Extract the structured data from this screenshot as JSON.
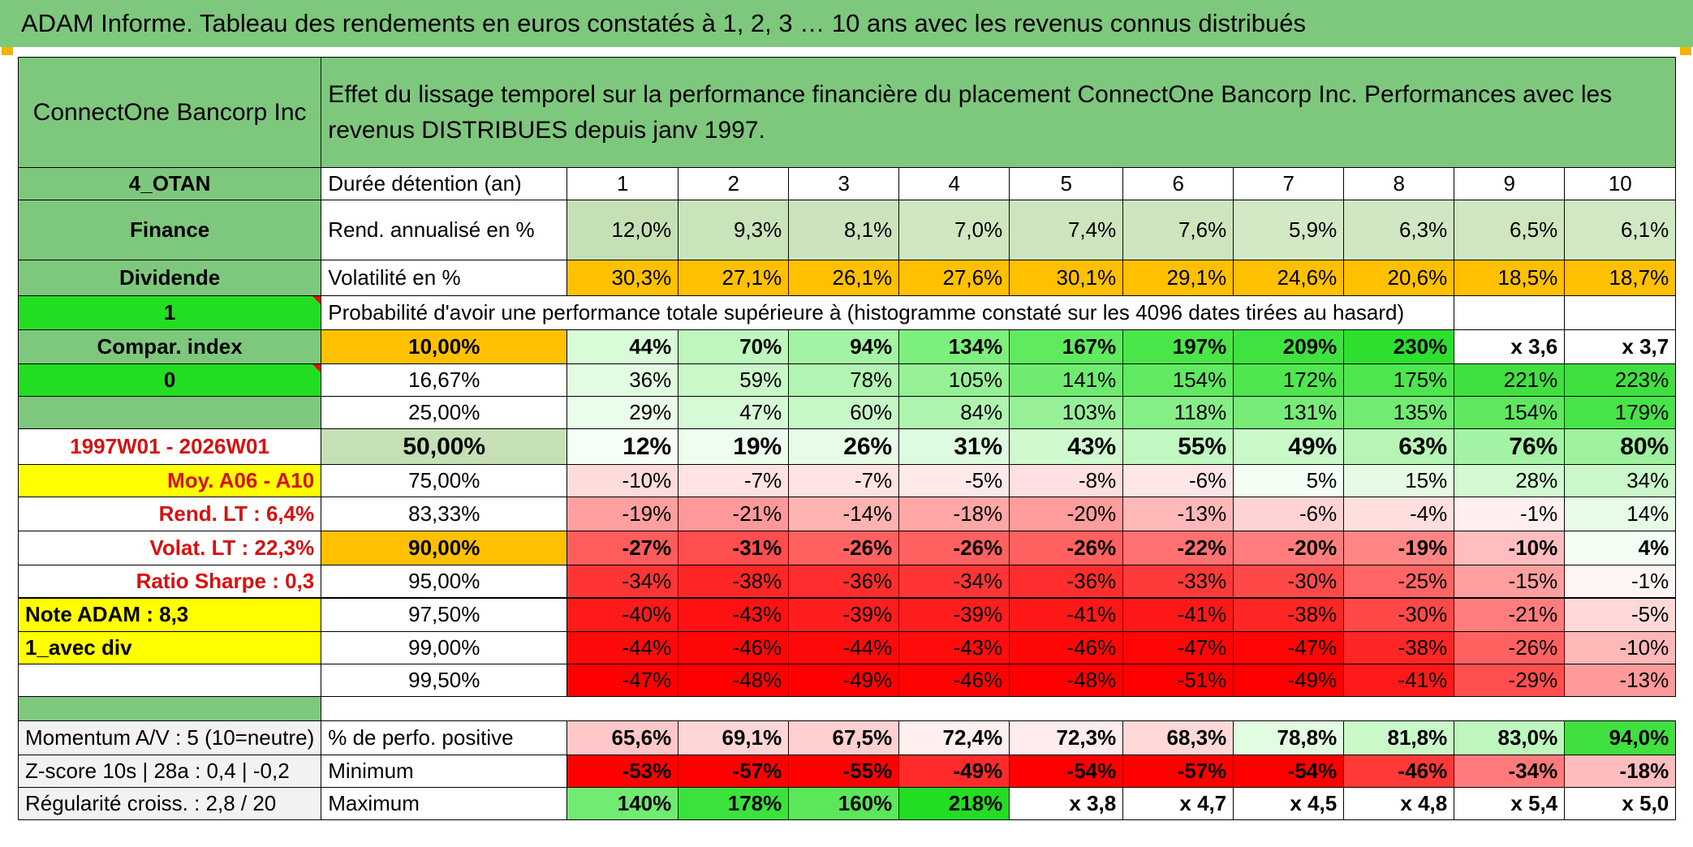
{
  "title": "ADAM Informe. Tableau des rendements en euros constatés à 1, 2, 3 … 10 ans avec les revenus connus distribués",
  "header": {
    "company": "ConnectOne Bancorp Inc",
    "description": "Effet du lissage temporel sur la performance financière du placement ConnectOne Bancorp Inc. Performances avec les revenus DISTRIBUES depuis janv 1997."
  },
  "left_labels": {
    "code": "4_OTAN",
    "sector": "Finance",
    "type": "Dividende",
    "flag": "1",
    "compar": "Compar. index",
    "compar_value": "0",
    "period": "1997W01 - 2026W01",
    "moy": "Moy. A06 - A10",
    "rend_lt": "Rend. LT :   6,4%",
    "volat_lt": "Volat. LT :   22,3%",
    "sharpe": "Ratio Sharpe :   0,3",
    "note": "Note ADAM : 8,3",
    "avec_div": "1_avec div",
    "momentum": "Momentum A/V : 5 (10=neutre)",
    "zscore": "Z-score 10s | 28a : 0,4 | -0,2",
    "regularite": "Régularité croiss. : 2,8 / 20"
  },
  "rows": {
    "duration": {
      "label": "Durée détention (an)",
      "values": [
        "1",
        "2",
        "3",
        "4",
        "5",
        "6",
        "7",
        "8",
        "9",
        "10"
      ]
    },
    "rend": {
      "label": "Rend. annualisé en %",
      "values": [
        "12,0%",
        "9,3%",
        "8,1%",
        "7,0%",
        "7,4%",
        "7,6%",
        "5,9%",
        "6,3%",
        "6,5%",
        "6,1%"
      ]
    },
    "vol": {
      "label": "Volatilité en %",
      "values": [
        "30,3%",
        "27,1%",
        "26,1%",
        "27,6%",
        "30,1%",
        "29,1%",
        "24,6%",
        "20,6%",
        "18,5%",
        "18,7%"
      ]
    },
    "prob_header": "Probabilité d'avoir une performance totale supérieure à (histogramme constaté sur les 4096 dates tirées au hasard)",
    "percentiles": [
      {
        "label": "10,00%",
        "values": [
          "44%",
          "70%",
          "94%",
          "134%",
          "167%",
          "197%",
          "209%",
          "230%",
          "x 3,6",
          "x 3,7"
        ]
      },
      {
        "label": "16,67%",
        "values": [
          "36%",
          "59%",
          "78%",
          "105%",
          "141%",
          "154%",
          "172%",
          "175%",
          "221%",
          "223%"
        ]
      },
      {
        "label": "25,00%",
        "values": [
          "29%",
          "47%",
          "60%",
          "84%",
          "103%",
          "118%",
          "131%",
          "135%",
          "154%",
          "179%"
        ]
      },
      {
        "label": "50,00%",
        "values": [
          "12%",
          "19%",
          "26%",
          "31%",
          "43%",
          "55%",
          "49%",
          "63%",
          "76%",
          "80%"
        ]
      },
      {
        "label": "75,00%",
        "values": [
          "-10%",
          "-7%",
          "-7%",
          "-5%",
          "-8%",
          "-6%",
          "5%",
          "15%",
          "28%",
          "34%"
        ]
      },
      {
        "label": "83,33%",
        "values": [
          "-19%",
          "-21%",
          "-14%",
          "-18%",
          "-20%",
          "-13%",
          "-6%",
          "-4%",
          "-1%",
          "14%"
        ]
      },
      {
        "label": "90,00%",
        "values": [
          "-27%",
          "-31%",
          "-26%",
          "-26%",
          "-26%",
          "-22%",
          "-20%",
          "-19%",
          "-10%",
          "4%"
        ]
      },
      {
        "label": "95,00%",
        "values": [
          "-34%",
          "-38%",
          "-36%",
          "-34%",
          "-36%",
          "-33%",
          "-30%",
          "-25%",
          "-15%",
          "-1%"
        ]
      },
      {
        "label": "97,50%",
        "values": [
          "-40%",
          "-43%",
          "-39%",
          "-39%",
          "-41%",
          "-41%",
          "-38%",
          "-30%",
          "-21%",
          "-5%"
        ]
      },
      {
        "label": "99,00%",
        "values": [
          "-44%",
          "-46%",
          "-44%",
          "-43%",
          "-46%",
          "-47%",
          "-47%",
          "-38%",
          "-26%",
          "-10%"
        ]
      },
      {
        "label": "99,50%",
        "values": [
          "-47%",
          "-48%",
          "-49%",
          "-46%",
          "-48%",
          "-51%",
          "-49%",
          "-41%",
          "-29%",
          "-13%"
        ]
      }
    ],
    "positive": {
      "label": "% de perfo. positive",
      "values": [
        "65,6%",
        "69,1%",
        "67,5%",
        "72,4%",
        "72,3%",
        "68,3%",
        "78,8%",
        "81,8%",
        "83,0%",
        "94,0%"
      ]
    },
    "minimum": {
      "label": "Minimum",
      "values": [
        "-53%",
        "-57%",
        "-55%",
        "-49%",
        "-54%",
        "-57%",
        "-54%",
        "-46%",
        "-34%",
        "-18%"
      ]
    },
    "maximum": {
      "label": "Maximum",
      "values": [
        "140%",
        "178%",
        "160%",
        "218%",
        "x 3,8",
        "x 4,7",
        "x 4,5",
        "x 4,8",
        "x 5,4",
        "x 5,0"
      ]
    }
  },
  "colors": {
    "header_green": "#7ec87e",
    "bright_green": "#22dd22",
    "orange": "#ffc000",
    "yellow": "#ffff00",
    "rend_green": "#c4e0b4",
    "light_gray": "#f2f2f2",
    "red_text": "#d81010"
  },
  "cell_colors": {
    "rend": [
      "#c4e0b4",
      "#c9e3ba",
      "#cbe4bd",
      "#cfe7c1",
      "#cde5bf",
      "#cce5be",
      "#d3e9c6",
      "#d0e7c3",
      "#cfe6c1",
      "#d1e8c4"
    ],
    "vol": [
      "#ffc000",
      "#ffc000",
      "#ffc000",
      "#ffc000",
      "#ffc000",
      "#ffc000",
      "#ffc000",
      "#ffc000",
      "#ffc000",
      "#ffc000"
    ],
    "percentiles": [
      [
        "#d8fbd8",
        "#bdf7bd",
        "#a4f3a4",
        "#7cef7c",
        "#5fea5f",
        "#49e549",
        "#3fe33f",
        "#2ee02e",
        "#ffffff",
        "#ffffff"
      ],
      [
        "#e1fce1",
        "#c9f8c9",
        "#b2f5b2",
        "#96f096",
        "#6feb6f",
        "#61e961",
        "#50e650",
        "#4ee64e",
        "#3fe03f",
        "#3fe03f"
      ],
      [
        "#eafdea",
        "#d6fad6",
        "#c6f7c6",
        "#aef3ae",
        "#97f097",
        "#86ee86",
        "#77ec77",
        "#72eb72",
        "#5fe85f",
        "#46e446"
      ],
      [
        "#f6fff6",
        "#eefeee",
        "#e6fce6",
        "#dffbdf",
        "#d0f9d0",
        "#c1f7c1",
        "#c9f8c9",
        "#b6f5b6",
        "#a4f3a4",
        "#9ef29e"
      ],
      [
        "#ffdcdc",
        "#ffe3e3",
        "#ffe3e3",
        "#ffe8e8",
        "#ffe0e0",
        "#ffe6e6",
        "#f3fff3",
        "#e3fce3",
        "#d2f9d2",
        "#cbf8cb"
      ],
      [
        "#ff9f9f",
        "#ff9898",
        "#ffb2b2",
        "#ffa6a6",
        "#ff9c9c",
        "#ffb8b8",
        "#ffd3d3",
        "#ffdede",
        "#ffefef",
        "#e6fce6"
      ],
      [
        "#ff5c5c",
        "#ff4e4e",
        "#ff6161",
        "#ff6161",
        "#ff6161",
        "#ff7070",
        "#ff7d7d",
        "#ff8484",
        "#ffbdbd",
        "#f4fff4"
      ],
      [
        "#ff3434",
        "#ff2626",
        "#ff2d2d",
        "#ff3434",
        "#ff2d2d",
        "#ff3a3a",
        "#ff4848",
        "#ff6565",
        "#ff9f9f",
        "#fff4f4"
      ],
      [
        "#ff1a1a",
        "#ff1212",
        "#ff1e1e",
        "#ff1e1e",
        "#ff1818",
        "#ff1818",
        "#ff2626",
        "#ff4848",
        "#ff7d7d",
        "#ffd8d8"
      ],
      [
        "#ff0a0a",
        "#ff0707",
        "#ff0a0a",
        "#ff0d0d",
        "#ff0707",
        "#ff0505",
        "#ff0505",
        "#ff2626",
        "#ff6060",
        "#ffb8b8"
      ],
      [
        "#ff0000",
        "#ff0000",
        "#ff0000",
        "#ff0303",
        "#ff0000",
        "#ff0000",
        "#ff0000",
        "#ff1a1a",
        "#ff4f4f",
        "#ff9a9a"
      ]
    ],
    "positive": [
      "#ffc8c8",
      "#ffd6d6",
      "#ffd0d0",
      "#ffefef",
      "#ffeded",
      "#ffd8d8",
      "#e1fce1",
      "#c9f8c9",
      "#bdf7bd",
      "#3fe03f"
    ],
    "minimum": [
      "#ff0000",
      "#ff0000",
      "#ff0000",
      "#ff2a2a",
      "#ff0000",
      "#ff0000",
      "#ff0000",
      "#ff3838",
      "#ff7a7a",
      "#ffbcbc"
    ],
    "maximum": [
      "#71eb71",
      "#3be23b",
      "#5ae85a",
      "#22dd22",
      "#ffffff",
      "#ffffff",
      "#ffffff",
      "#ffffff",
      "#ffffff",
      "#ffffff"
    ]
  }
}
